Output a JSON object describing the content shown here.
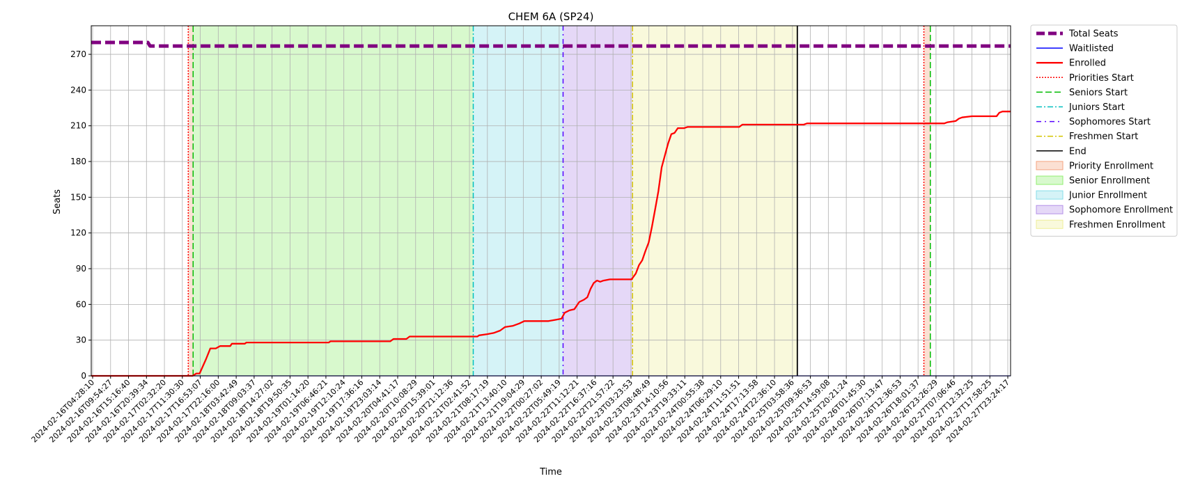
{
  "chart_data": {
    "type": "line",
    "title": "CHEM 6A (SP24)",
    "xlabel": "Time",
    "ylabel": "Seats",
    "xlim": [
      "2024-02-16T04:28:10",
      "2024-02-28T01:00:00"
    ],
    "ylim": [
      0,
      294
    ],
    "yticks": [
      0,
      30,
      60,
      90,
      120,
      150,
      180,
      210,
      240,
      270
    ],
    "grid": true,
    "legend_position": "outside-right",
    "xtick_labels": [
      "2024-02-16T04:28:10",
      "2024-02-16T09:54:27",
      "2024-02-16T15:16:40",
      "2024-02-16T20:39:34",
      "2024-02-17T02:32:20",
      "2024-02-17T11:30:30",
      "2024-02-17T16:53:07",
      "2024-02-17T22:16:00",
      "2024-02-18T03:42:49",
      "2024-02-18T09:03:37",
      "2024-02-18T14:27:02",
      "2024-02-18T19:50:35",
      "2024-02-19T01:14:20",
      "2024-02-19T06:46:21",
      "2024-02-19T12:10:24",
      "2024-02-19T17:36:16",
      "2024-02-19T23:03:14",
      "2024-02-20T04:41:17",
      "2024-02-20T10:08:29",
      "2024-02-20T15:39:01",
      "2024-02-20T21:12:36",
      "2024-02-21T02:41:52",
      "2024-02-21T08:17:19",
      "2024-02-21T13:40:10",
      "2024-02-21T19:04:29",
      "2024-02-22T00:27:02",
      "2024-02-22T05:49:19",
      "2024-02-22T11:12:21",
      "2024-02-22T16:37:16",
      "2024-02-22T21:57:22",
      "2024-02-23T03:23:53",
      "2024-02-23T08:48:49",
      "2024-02-23T14:10:56",
      "2024-02-23T19:33:11",
      "2024-02-24T00:55:38",
      "2024-02-24T06:29:10",
      "2024-02-24T11:51:51",
      "2024-02-24T17:13:58",
      "2024-02-24T22:36:10",
      "2024-02-25T03:58:36",
      "2024-02-25T09:36:53",
      "2024-02-25T14:59:08",
      "2024-02-25T20:21:24",
      "2024-02-26T01:45:30",
      "2024-02-26T07:13:47",
      "2024-02-26T12:36:53",
      "2024-02-26T18:01:37",
      "2024-02-26T23:26:29",
      "2024-02-27T07:06:46",
      "2024-02-27T12:32:25",
      "2024-02-27T17:58:25",
      "2024-02-27T23:24:17"
    ],
    "series": [
      {
        "name": "Total Seats",
        "color": "#800080",
        "style": "dashed",
        "points": [
          [
            "2024-02-16T04:28:10",
            280
          ],
          [
            "2024-02-16T22:00:00",
            280
          ],
          [
            "2024-02-16T22:40:00",
            277
          ],
          [
            "2024-02-28T01:00:00",
            277
          ]
        ]
      },
      {
        "name": "Waitlisted",
        "color": "#0000ff",
        "style": "solid",
        "points": [
          [
            "2024-02-16T04:28:10",
            0
          ],
          [
            "2024-02-28T01:00:00",
            0
          ]
        ]
      },
      {
        "name": "Enrolled",
        "color": "#ff0000",
        "style": "solid",
        "points": [
          [
            "2024-02-16T04:28:10",
            0
          ],
          [
            "2024-02-17T11:50:00",
            0
          ],
          [
            "2024-02-17T13:00:00",
            2
          ],
          [
            "2024-02-17T14:00:00",
            2
          ],
          [
            "2024-02-17T16:00:00",
            14
          ],
          [
            "2024-02-17T17:20:00",
            23
          ],
          [
            "2024-02-17T19:00:00",
            23
          ],
          [
            "2024-02-17T20:20:00",
            25
          ],
          [
            "2024-02-17T23:30:00",
            25
          ],
          [
            "2024-02-18T00:00:00",
            27
          ],
          [
            "2024-02-18T04:00:00",
            27
          ],
          [
            "2024-02-18T04:30:00",
            28
          ],
          [
            "2024-02-19T06:00:00",
            28
          ],
          [
            "2024-02-19T06:30:00",
            29
          ],
          [
            "2024-02-20T01:00:00",
            29
          ],
          [
            "2024-02-20T02:00:00",
            31
          ],
          [
            "2024-02-20T06:00:00",
            31
          ],
          [
            "2024-02-20T07:00:00",
            33
          ],
          [
            "2024-02-21T04:00:00",
            33
          ],
          [
            "2024-02-21T04:30:00",
            34
          ],
          [
            "2024-02-21T07:00:00",
            35
          ],
          [
            "2024-02-21T09:00:00",
            36
          ],
          [
            "2024-02-21T11:00:00",
            38
          ],
          [
            "2024-02-21T12:30:00",
            41
          ],
          [
            "2024-02-21T15:00:00",
            42
          ],
          [
            "2024-02-21T17:00:00",
            44
          ],
          [
            "2024-02-21T18:30:00",
            46
          ],
          [
            "2024-02-22T02:00:00",
            46
          ],
          [
            "2024-02-22T04:00:00",
            47
          ],
          [
            "2024-02-22T06:00:00",
            48
          ],
          [
            "2024-02-22T07:00:00",
            53
          ],
          [
            "2024-02-22T08:30:00",
            55
          ],
          [
            "2024-02-22T10:00:00",
            56
          ],
          [
            "2024-02-22T11:30:00",
            62
          ],
          [
            "2024-02-22T13:00:00",
            64
          ],
          [
            "2024-02-22T14:00:00",
            66
          ],
          [
            "2024-02-22T15:00:00",
            73
          ],
          [
            "2024-02-22T16:00:00",
            78
          ],
          [
            "2024-02-22T17:00:00",
            80
          ],
          [
            "2024-02-22T18:00:00",
            79
          ],
          [
            "2024-02-22T19:00:00",
            80
          ],
          [
            "2024-02-22T21:00:00",
            81
          ],
          [
            "2024-02-23T03:40:00",
            81
          ],
          [
            "2024-02-23T05:00:00",
            86
          ],
          [
            "2024-02-23T06:00:00",
            93
          ],
          [
            "2024-02-23T07:00:00",
            97
          ],
          [
            "2024-02-23T08:00:00",
            105
          ],
          [
            "2024-02-23T09:00:00",
            112
          ],
          [
            "2024-02-23T10:00:00",
            125
          ],
          [
            "2024-02-23T11:00:00",
            140
          ],
          [
            "2024-02-23T12:00:00",
            155
          ],
          [
            "2024-02-23T13:00:00",
            175
          ],
          [
            "2024-02-23T14:00:00",
            185
          ],
          [
            "2024-02-23T15:00:00",
            195
          ],
          [
            "2024-02-23T16:00:00",
            203
          ],
          [
            "2024-02-23T17:00:00",
            204
          ],
          [
            "2024-02-23T18:00:00",
            208
          ],
          [
            "2024-02-23T20:00:00",
            208
          ],
          [
            "2024-02-23T21:00:00",
            209
          ],
          [
            "2024-02-24T13:00:00",
            209
          ],
          [
            "2024-02-24T14:00:00",
            211
          ],
          [
            "2024-02-25T09:00:00",
            211
          ],
          [
            "2024-02-25T10:00:00",
            212
          ],
          [
            "2024-02-27T04:30:00",
            212
          ],
          [
            "2024-02-27T05:30:00",
            213
          ],
          [
            "2024-02-27T08:00:00",
            214
          ],
          [
            "2024-02-27T09:00:00",
            216
          ],
          [
            "2024-02-27T10:00:00",
            217
          ],
          [
            "2024-02-27T13:00:00",
            218
          ],
          [
            "2024-02-27T20:40:00",
            218
          ],
          [
            "2024-02-27T21:30:00",
            221
          ],
          [
            "2024-02-27T22:30:00",
            222
          ],
          [
            "2024-02-28T01:00:00",
            222
          ]
        ]
      }
    ],
    "vlines": [
      {
        "name": "Priorities Start",
        "color": "#ff0000",
        "style": "dotted",
        "x": [
          "2024-02-17T10:30:00",
          "2024-02-26T22:10:00"
        ]
      },
      {
        "name": "Seniors Start",
        "color": "#00bb00",
        "style": "dashed",
        "x": [
          "2024-02-17T12:00:00",
          "2024-02-27T00:10:00"
        ]
      },
      {
        "name": "Juniors Start",
        "color": "#00bfbf",
        "style": "dashdot",
        "x": [
          "2024-02-21T02:41:52"
        ]
      },
      {
        "name": "Sophomores Start",
        "color": "#5500ff",
        "style": "densedashdot",
        "x": [
          "2024-02-22T06:30:00"
        ]
      },
      {
        "name": "Freshmen Start",
        "color": "#d4c600",
        "style": "dashdot",
        "x": [
          "2024-02-23T04:00:00"
        ]
      },
      {
        "name": "End",
        "color": "#000000",
        "style": "solid",
        "x": [
          "2024-02-25T07:00:00"
        ]
      }
    ],
    "spans": [
      {
        "name": "Priority Enrollment",
        "color": "#f4a582",
        "ranges": [
          [
            "2024-02-17T10:30:00",
            "2024-02-17T12:00:00"
          ],
          [
            "2024-02-26T22:10:00",
            "2024-02-27T00:10:00"
          ]
        ]
      },
      {
        "name": "Senior Enrollment",
        "color": "#90ee70",
        "ranges": [
          [
            "2024-02-17T12:00:00",
            "2024-02-21T02:41:52"
          ]
        ]
      },
      {
        "name": "Junior Enrollment",
        "color": "#87dee8",
        "ranges": [
          [
            "2024-02-21T02:41:52",
            "2024-02-22T06:30:00"
          ]
        ]
      },
      {
        "name": "Sophomore Enrollment",
        "color": "#b490e8",
        "ranges": [
          [
            "2024-02-22T06:30:00",
            "2024-02-23T04:00:00"
          ]
        ]
      },
      {
        "name": "Freshmen Enrollment",
        "color": "#eeee9a",
        "ranges": [
          [
            "2024-02-23T04:00:00",
            "2024-02-25T07:00:00"
          ]
        ]
      }
    ],
    "legend": [
      {
        "label": "Total Seats",
        "kind": "line",
        "color": "#800080",
        "style": "dashed-thick"
      },
      {
        "label": "Waitlisted",
        "kind": "line",
        "color": "#0000ff",
        "style": "solid"
      },
      {
        "label": "Enrolled",
        "kind": "line",
        "color": "#ff0000",
        "style": "solid-thick"
      },
      {
        "label": "Priorities Start",
        "kind": "line",
        "color": "#ff0000",
        "style": "dotted"
      },
      {
        "label": "Seniors Start",
        "kind": "line",
        "color": "#00bb00",
        "style": "dashed"
      },
      {
        "label": "Juniors Start",
        "kind": "line",
        "color": "#00bfbf",
        "style": "dashdot"
      },
      {
        "label": "Sophomores Start",
        "kind": "line",
        "color": "#5500ff",
        "style": "densedashdot"
      },
      {
        "label": "Freshmen Start",
        "kind": "line",
        "color": "#d4c600",
        "style": "dashdot"
      },
      {
        "label": "End",
        "kind": "line",
        "color": "#000000",
        "style": "solid"
      },
      {
        "label": "Priority Enrollment",
        "kind": "patch",
        "color": "#f4a582"
      },
      {
        "label": "Senior Enrollment",
        "kind": "patch",
        "color": "#90ee70"
      },
      {
        "label": "Junior Enrollment",
        "kind": "patch",
        "color": "#87dee8"
      },
      {
        "label": "Sophomore Enrollment",
        "kind": "patch",
        "color": "#b490e8"
      },
      {
        "label": "Freshmen Enrollment",
        "kind": "patch",
        "color": "#eeee9a"
      }
    ]
  }
}
